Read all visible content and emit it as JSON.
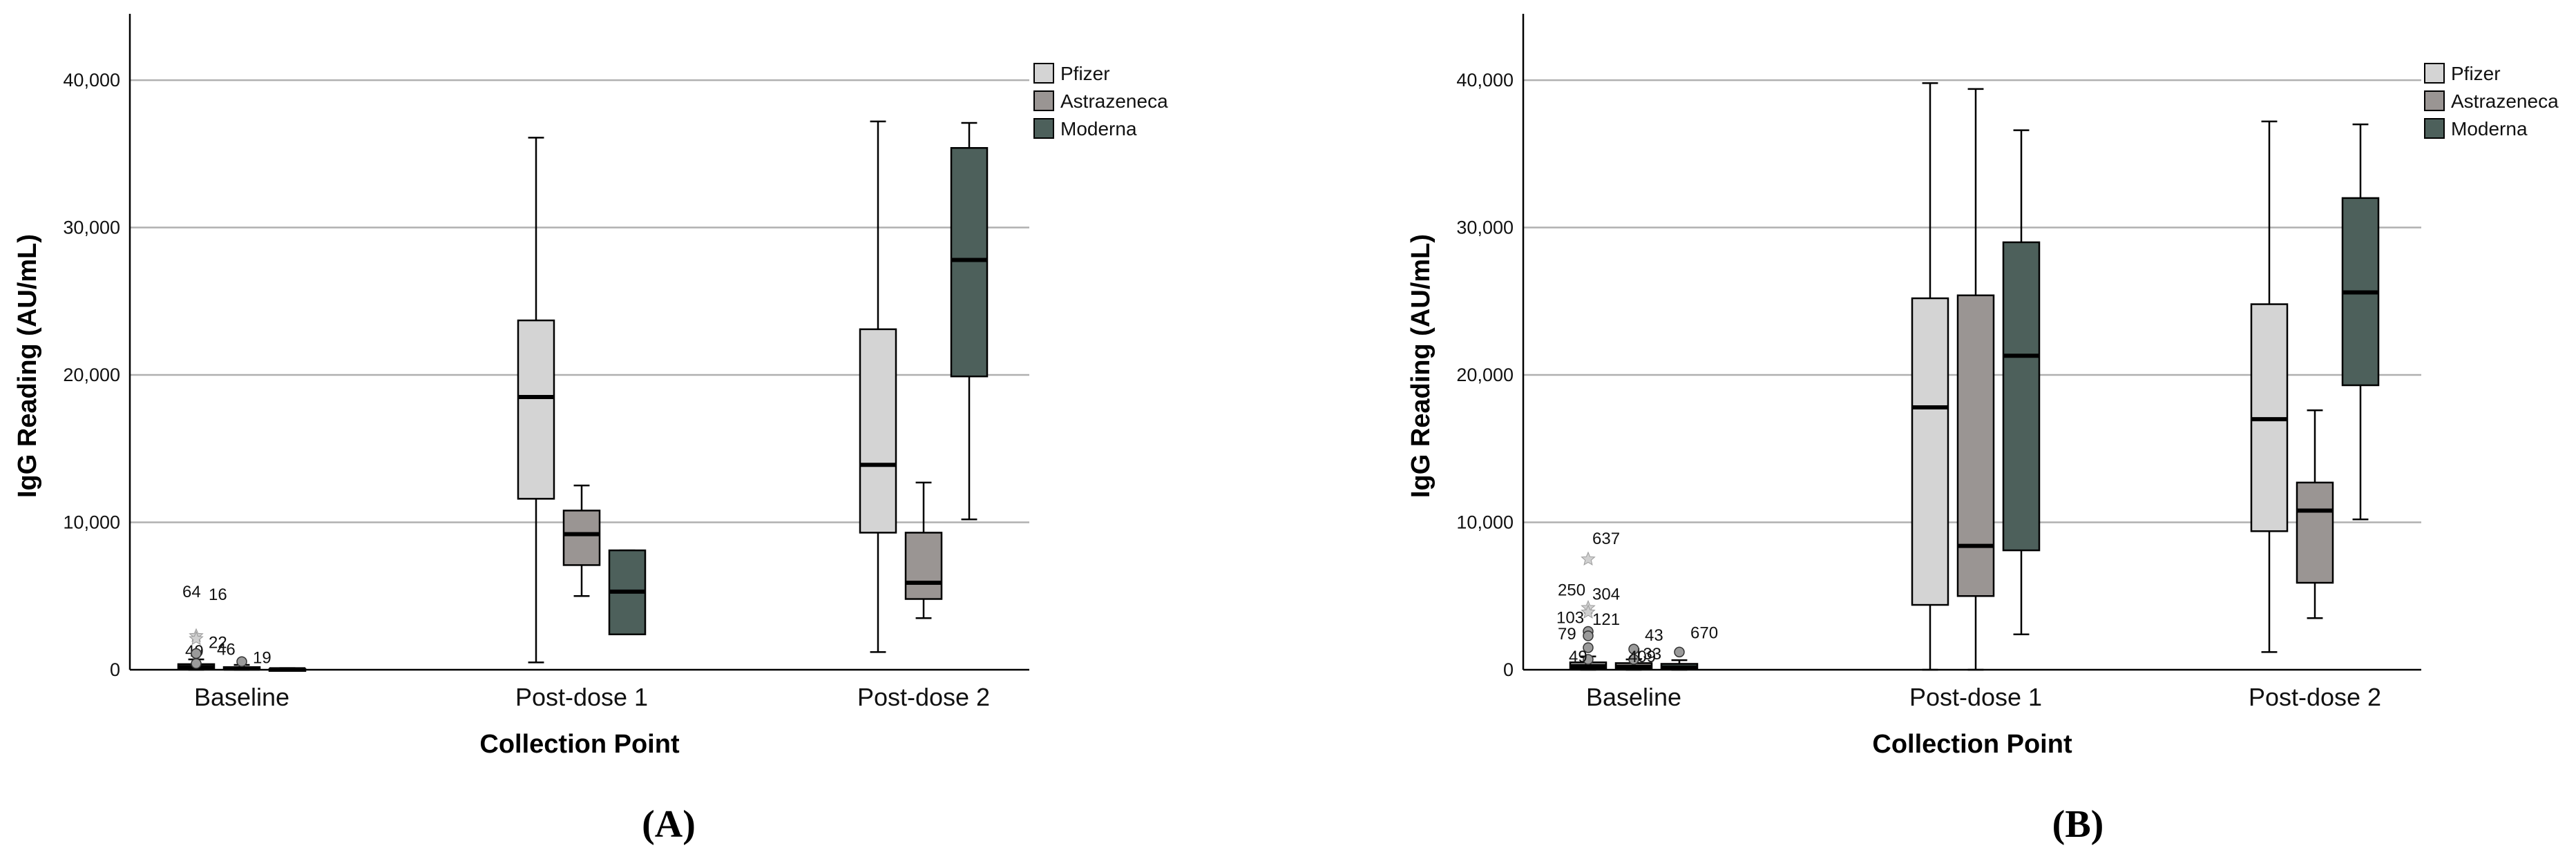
{
  "figure": {
    "panels": [
      "A",
      "B"
    ]
  },
  "chart_data": [
    {
      "type": "boxplot",
      "panel_label": "(A)",
      "title": "",
      "xlabel": "Collection Point",
      "ylabel": "IgG Reading (AU/mL)",
      "ylim": [
        0,
        44500
      ],
      "yticks": [
        0,
        10000,
        20000,
        30000,
        40000
      ],
      "ytick_labels": [
        "0",
        "10,000",
        "20,000",
        "30,000",
        "40,000"
      ],
      "grid": true,
      "legend_position": "top-right",
      "categories": [
        "Baseline",
        "Post-dose 1",
        "Post-dose 2"
      ],
      "series": [
        {
          "name": "Pfizer",
          "color": "#d4d4d4",
          "boxes": [
            {
              "min": 0,
              "q1": 60,
              "median": 180,
              "q3": 380,
              "max": 700
            },
            {
              "min": 500,
              "q1": 11600,
              "median": 18500,
              "q3": 23700,
              "max": 36100
            },
            {
              "min": 1200,
              "q1": 9300,
              "median": 13900,
              "q3": 23100,
              "max": 37200
            }
          ]
        },
        {
          "name": "Astrazeneca",
          "color": "#9a9593",
          "boxes": [
            {
              "min": 0,
              "q1": 20,
              "median": 80,
              "q3": 180,
              "max": 330
            },
            {
              "min": 5000,
              "q1": 7100,
              "median": 9200,
              "q3": 10800,
              "max": 12500
            },
            {
              "min": 3500,
              "q1": 4800,
              "median": 5900,
              "q3": 9300,
              "max": 12700
            }
          ]
        },
        {
          "name": "Moderna",
          "color": "#4d605b",
          "boxes": [
            {
              "min": 0,
              "q1": 10,
              "median": 30,
              "q3": 60,
              "max": 110
            },
            {
              "min": 2400,
              "q1": 2400,
              "median": 5300,
              "q3": 8100,
              "max": 8100
            },
            {
              "min": 10200,
              "q1": 19900,
              "median": 27800,
              "q3": 35400,
              "max": 37100
            }
          ]
        }
      ],
      "outliers": [
        {
          "label": "49",
          "value": 420,
          "category": 0,
          "series": 0,
          "marker": "circle"
        },
        {
          "label": "22",
          "value": 1100,
          "category": 0,
          "series": 0,
          "marker": "circle"
        },
        {
          "label": "64",
          "value": 2300,
          "category": 0,
          "series": 0,
          "marker": "star"
        },
        {
          "label": "16",
          "value": 2100,
          "category": 0,
          "series": 0,
          "marker": "star"
        },
        {
          "label": "46",
          "value": 1100,
          "category": 0,
          "series": 0,
          "marker": "circle"
        },
        {
          "label": "19",
          "value": 550,
          "category": 0,
          "series": 1,
          "marker": "circle"
        }
      ]
    },
    {
      "type": "boxplot",
      "panel_label": "(B)",
      "title": "",
      "xlabel": "Collection Point",
      "ylabel": "IgG Reading (AU/mL)",
      "ylim": [
        0,
        44500
      ],
      "yticks": [
        0,
        10000,
        20000,
        30000,
        40000
      ],
      "ytick_labels": [
        "0",
        "10,000",
        "20,000",
        "30,000",
        "40,000"
      ],
      "grid": true,
      "legend_position": "top-right",
      "categories": [
        "Baseline",
        "Post-dose 1",
        "Post-dose 2"
      ],
      "series": [
        {
          "name": "Pfizer",
          "color": "#d4d4d4",
          "boxes": [
            {
              "min": 0,
              "q1": 100,
              "median": 250,
              "q3": 500,
              "max": 900
            },
            {
              "min": 0,
              "q1": 4400,
              "median": 17800,
              "q3": 25200,
              "max": 39800
            },
            {
              "min": 1200,
              "q1": 9400,
              "median": 17000,
              "q3": 24800,
              "max": 37200
            }
          ]
        },
        {
          "name": "Astrazeneca",
          "color": "#9a9593",
          "boxes": [
            {
              "min": 0,
              "q1": 80,
              "median": 200,
              "q3": 450,
              "max": 700
            },
            {
              "min": 0,
              "q1": 5000,
              "median": 8400,
              "q3": 25400,
              "max": 39400
            },
            {
              "min": 3500,
              "q1": 5900,
              "median": 10800,
              "q3": 12700,
              "max": 17600
            }
          ]
        },
        {
          "name": "Moderna",
          "color": "#4d605b",
          "boxes": [
            {
              "min": 0,
              "q1": 60,
              "median": 150,
              "q3": 400,
              "max": 650
            },
            {
              "min": 2400,
              "q1": 8100,
              "median": 21300,
              "q3": 29000,
              "max": 36600
            },
            {
              "min": 10200,
              "q1": 19300,
              "median": 25600,
              "q3": 32000,
              "max": 37000
            }
          ]
        }
      ],
      "outliers": [
        {
          "label": "637",
          "value": 7500,
          "category": 0,
          "series": 0,
          "marker": "star"
        },
        {
          "label": "250",
          "value": 4200,
          "category": 0,
          "series": 0,
          "marker": "star"
        },
        {
          "label": "304",
          "value": 3900,
          "category": 0,
          "series": 0,
          "marker": "star"
        },
        {
          "label": "103",
          "value": 2600,
          "category": 0,
          "series": 0,
          "marker": "circle"
        },
        {
          "label": "121",
          "value": 2300,
          "category": 0,
          "series": 0,
          "marker": "circle"
        },
        {
          "label": "79",
          "value": 1500,
          "category": 0,
          "series": 0,
          "marker": "circle"
        },
        {
          "label": "49",
          "value": 700,
          "category": 0,
          "series": 0,
          "marker": "circle"
        },
        {
          "label": "133",
          "value": 700,
          "category": 0,
          "series": 1,
          "marker": "circle"
        },
        {
          "label": "43",
          "value": 1400,
          "category": 0,
          "series": 1,
          "marker": "circle"
        },
        {
          "label": "409",
          "value": 700,
          "category": 0,
          "series": 1,
          "marker": "circle"
        },
        {
          "label": "670",
          "value": 1200,
          "category": 0,
          "series": 2,
          "marker": "circle"
        }
      ]
    }
  ]
}
